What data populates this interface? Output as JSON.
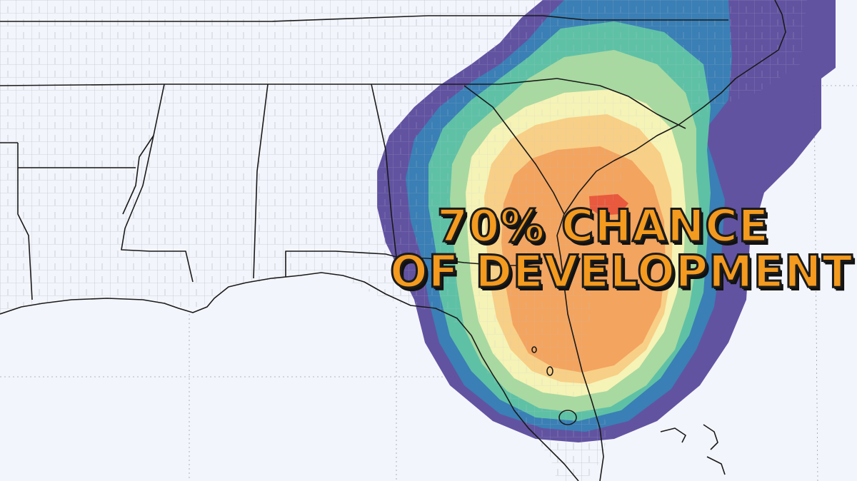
{
  "headline": {
    "line1": "70% CHANCE",
    "line2": "OF DEVELOPMENT"
  },
  "colors": {
    "ocean": "#f3f5fc",
    "land": "#f3f5fc",
    "border": "#1a1a1a",
    "county": "#b9bdc6",
    "contour_purple": "#5a4a9c",
    "contour_blue": "#3a7fb5",
    "contour_teal": "#5ec1a6",
    "contour_green": "#a8d9a0",
    "contour_cream": "#f5f3b6",
    "contour_light_orange": "#f8cf86",
    "contour_orange": "#f3a45f",
    "contour_red": "#e8593e",
    "headline_fill": "#f39a1f",
    "headline_outline": "#1b1b1b"
  }
}
